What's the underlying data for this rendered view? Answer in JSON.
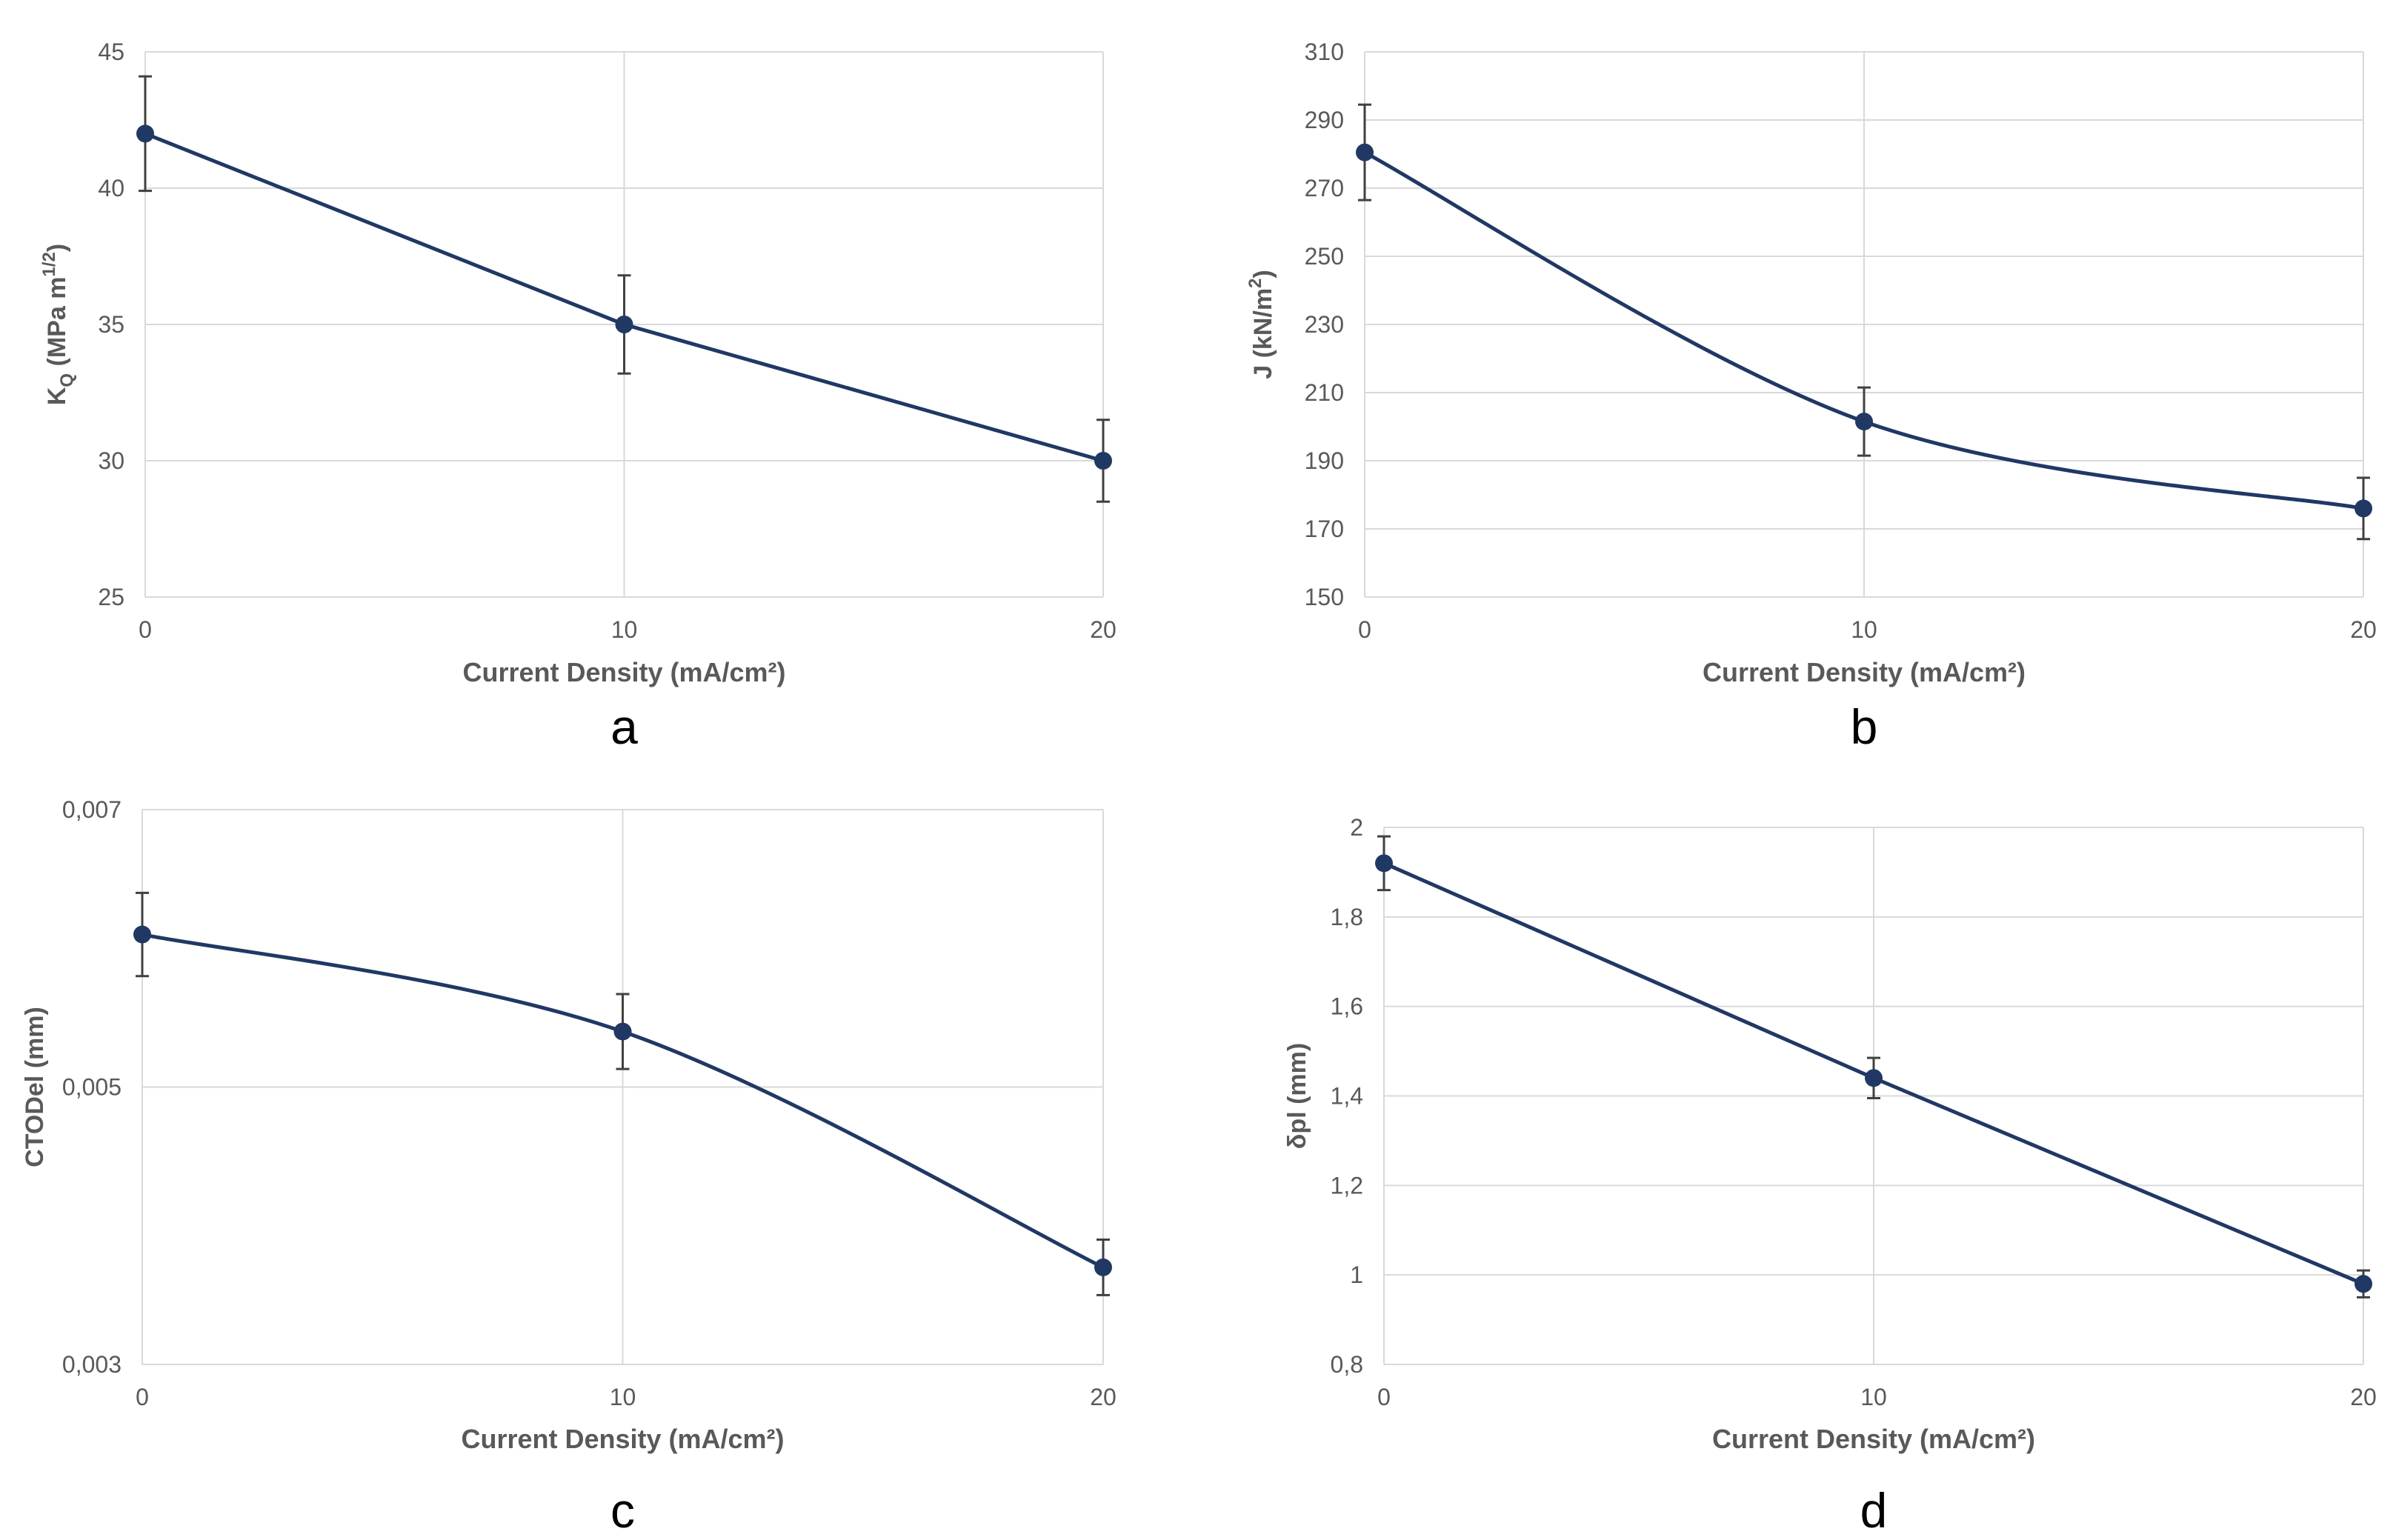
{
  "figure": {
    "colors": {
      "series": "#203864",
      "grid": "#d9d9d9",
      "text": "#595959"
    }
  },
  "chart_data": [
    {
      "panel": "a",
      "type": "line",
      "xlabel": "Current Density (mA/cm²)",
      "ylabel_main": "K",
      "ylabel_sub": "Q",
      "ylabel_rest": " (MPa m",
      "ylabel_sup": "1/2",
      "ylabel_end": ")",
      "x": [
        0,
        10,
        20
      ],
      "y": [
        42,
        35,
        30
      ],
      "err": [
        2.1,
        1.8,
        1.5
      ],
      "ylim": [
        25,
        45
      ],
      "yticks": [
        25,
        30,
        35,
        40,
        45
      ],
      "ytick_labels": [
        "25",
        "30",
        "35",
        "40",
        "45"
      ],
      "xticks": [
        0,
        10,
        20
      ],
      "xtick_labels": [
        "0",
        "10",
        "20"
      ],
      "smooth": false
    },
    {
      "panel": "b",
      "type": "line",
      "xlabel": "Current Density (mA/cm²)",
      "ylabel_main": "J (kN/m",
      "ylabel_sup": "2",
      "ylabel_end": ")",
      "x": [
        0,
        10,
        20
      ],
      "y": [
        280.5,
        201.5,
        176
      ],
      "err": [
        14,
        10,
        9
      ],
      "ylim": [
        150,
        310
      ],
      "yticks": [
        150,
        170,
        190,
        210,
        230,
        250,
        270,
        290,
        310
      ],
      "ytick_labels": [
        "150",
        "170",
        "190",
        "210",
        "230",
        "250",
        "270",
        "290",
        "310"
      ],
      "xticks": [
        0,
        10,
        20
      ],
      "xtick_labels": [
        "0",
        "10",
        "20"
      ],
      "smooth": true
    },
    {
      "panel": "c",
      "type": "line",
      "xlabel": "Current Density (mA/cm²)",
      "ylabel_main": "CTODel (mm)",
      "x": [
        0,
        10,
        20
      ],
      "y": [
        0.0061,
        0.0054,
        0.0037
      ],
      "err": [
        0.0003,
        0.00027,
        0.0002
      ],
      "ylim": [
        0.003,
        0.007
      ],
      "yticks": [
        0.003,
        0.005,
        0.007
      ],
      "ytick_labels": [
        "0,003",
        "0,005",
        "0,007"
      ],
      "xticks": [
        0,
        10,
        20
      ],
      "xtick_labels": [
        "0",
        "10",
        "20"
      ],
      "smooth": true
    },
    {
      "panel": "d",
      "type": "line",
      "xlabel": "Current Density (mA/cm²)",
      "ylabel_main": "δpl (mm)",
      "x": [
        0,
        10,
        20
      ],
      "y": [
        1.92,
        1.44,
        0.98
      ],
      "err": [
        0.06,
        0.045,
        0.03
      ],
      "ylim": [
        0.8,
        2.0
      ],
      "yticks": [
        0.8,
        1.0,
        1.2,
        1.4,
        1.6,
        1.8,
        2.0
      ],
      "ytick_labels": [
        "0,8",
        "1",
        "1,2",
        "1,4",
        "1,6",
        "1,8",
        "2"
      ],
      "xticks": [
        0,
        10,
        20
      ],
      "xtick_labels": [
        "0",
        "10",
        "20"
      ],
      "smooth": false
    }
  ]
}
